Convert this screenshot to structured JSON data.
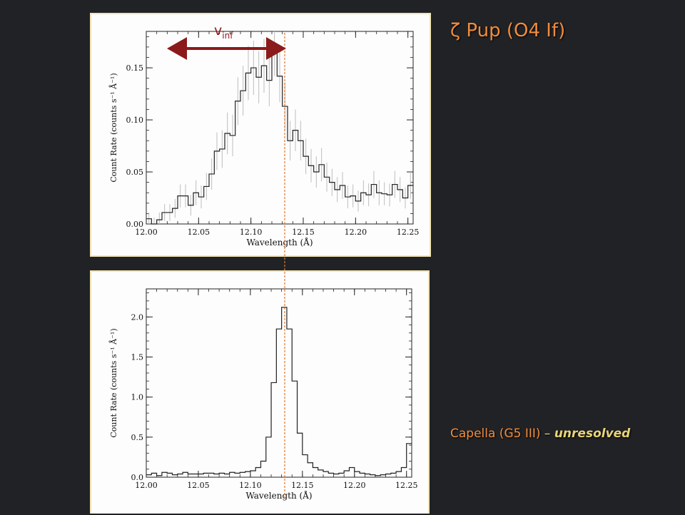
{
  "title": "ζ Pup (O4 If)",
  "caption": {
    "star": "Capella (G5 III)",
    "dash": " – ",
    "note": "unresolved"
  },
  "annotation": {
    "arrow_label_main": "v",
    "arrow_label_sub": "inf",
    "arrow_color": "#8b1a1a",
    "reference_line_color": "#e07830",
    "reference_wavelength": 12.134
  },
  "colors": {
    "background": "#212226",
    "title": "#f08c3c",
    "caption_accent": "#e8d478"
  },
  "chart_data": [
    {
      "type": "line",
      "step": true,
      "xlabel": "Wavelength (Å)",
      "ylabel": "Count Rate (counts s⁻¹ Å⁻¹)",
      "xlim": [
        12.0,
        12.255
      ],
      "ylim": [
        0.0,
        0.185
      ],
      "xticks": [
        "12.00",
        "12.05",
        "12.10",
        "12.15",
        "12.20",
        "12.25"
      ],
      "yticks": [
        "0.00",
        "0.05",
        "0.10",
        "0.15"
      ],
      "xtick_values": [
        12.0,
        12.05,
        12.1,
        12.15,
        12.2,
        12.25
      ],
      "ytick_values": [
        0.0,
        0.05,
        0.1,
        0.15
      ],
      "bin_width": 0.005,
      "x": [
        12.0,
        12.005,
        12.01,
        12.015,
        12.02,
        12.025,
        12.03,
        12.035,
        12.04,
        12.045,
        12.05,
        12.055,
        12.06,
        12.065,
        12.07,
        12.075,
        12.08,
        12.085,
        12.09,
        12.095,
        12.1,
        12.105,
        12.11,
        12.115,
        12.12,
        12.125,
        12.13,
        12.135,
        12.14,
        12.145,
        12.15,
        12.155,
        12.16,
        12.165,
        12.17,
        12.175,
        12.18,
        12.185,
        12.19,
        12.195,
        12.2,
        12.205,
        12.21,
        12.215,
        12.22,
        12.225,
        12.23,
        12.235,
        12.24,
        12.245,
        12.25
      ],
      "y": [
        0.005,
        0.0,
        0.004,
        0.011,
        0.011,
        0.015,
        0.027,
        0.027,
        0.018,
        0.03,
        0.026,
        0.036,
        0.048,
        0.07,
        0.072,
        0.087,
        0.085,
        0.118,
        0.128,
        0.145,
        0.15,
        0.141,
        0.152,
        0.138,
        0.17,
        0.142,
        0.113,
        0.08,
        0.09,
        0.08,
        0.065,
        0.056,
        0.05,
        0.057,
        0.045,
        0.04,
        0.033,
        0.037,
        0.026,
        0.027,
        0.022,
        0.03,
        0.028,
        0.038,
        0.03,
        0.029,
        0.028,
        0.038,
        0.033,
        0.025,
        0.037
      ],
      "errors": [
        0.006,
        0.006,
        0.007,
        0.008,
        0.008,
        0.009,
        0.011,
        0.011,
        0.01,
        0.012,
        0.011,
        0.013,
        0.015,
        0.018,
        0.018,
        0.02,
        0.02,
        0.023,
        0.024,
        0.026,
        0.026,
        0.025,
        0.026,
        0.025,
        0.028,
        0.025,
        0.023,
        0.019,
        0.02,
        0.019,
        0.017,
        0.016,
        0.015,
        0.016,
        0.014,
        0.013,
        0.012,
        0.013,
        0.011,
        0.011,
        0.01,
        0.012,
        0.011,
        0.013,
        0.012,
        0.011,
        0.011,
        0.013,
        0.012,
        0.01,
        0.013
      ]
    },
    {
      "type": "line",
      "step": true,
      "xlabel": "Wavelength (Å)",
      "ylabel": "Count Rate (counts s⁻¹ Å⁻¹)",
      "xlim": [
        12.0,
        12.255
      ],
      "ylim": [
        0.0,
        2.35
      ],
      "xticks": [
        "12.00",
        "12.05",
        "12.10",
        "12.15",
        "12.20",
        "12.25"
      ],
      "yticks": [
        "0.0",
        "0.5",
        "1.0",
        "1.5",
        "2.0"
      ],
      "xtick_values": [
        12.0,
        12.05,
        12.1,
        12.15,
        12.2,
        12.25
      ],
      "ytick_values": [
        0.0,
        0.5,
        1.0,
        1.5,
        2.0
      ],
      "bin_width": 0.005,
      "x": [
        12.0,
        12.005,
        12.01,
        12.015,
        12.02,
        12.025,
        12.03,
        12.035,
        12.04,
        12.045,
        12.05,
        12.055,
        12.06,
        12.065,
        12.07,
        12.075,
        12.08,
        12.085,
        12.09,
        12.095,
        12.1,
        12.105,
        12.11,
        12.115,
        12.12,
        12.125,
        12.13,
        12.135,
        12.14,
        12.145,
        12.15,
        12.155,
        12.16,
        12.165,
        12.17,
        12.175,
        12.18,
        12.185,
        12.19,
        12.195,
        12.2,
        12.205,
        12.21,
        12.215,
        12.22,
        12.225,
        12.23,
        12.235,
        12.24,
        12.245,
        12.25
      ],
      "y": [
        0.03,
        0.05,
        0.02,
        0.06,
        0.05,
        0.03,
        0.04,
        0.06,
        0.04,
        0.04,
        0.04,
        0.05,
        0.05,
        0.04,
        0.05,
        0.04,
        0.06,
        0.05,
        0.06,
        0.07,
        0.08,
        0.12,
        0.2,
        0.5,
        1.18,
        1.85,
        2.12,
        1.85,
        1.2,
        0.55,
        0.28,
        0.18,
        0.12,
        0.09,
        0.07,
        0.05,
        0.04,
        0.05,
        0.08,
        0.12,
        0.07,
        0.05,
        0.04,
        0.03,
        0.02,
        0.03,
        0.04,
        0.05,
        0.07,
        0.12,
        0.42
      ]
    }
  ]
}
